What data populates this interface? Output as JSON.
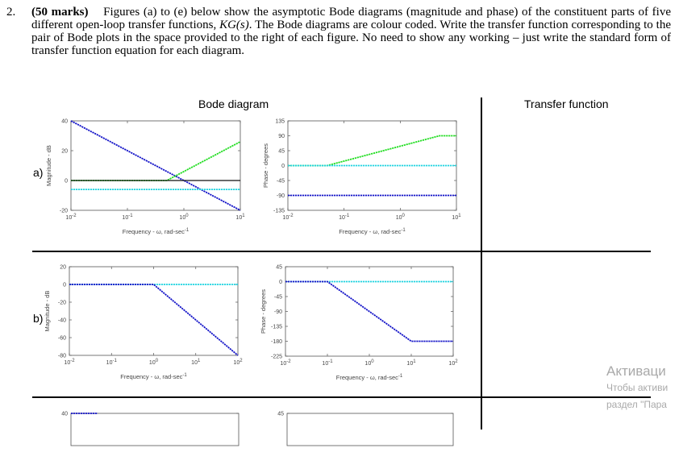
{
  "question": {
    "number": "2.",
    "marks": "(50 marks)",
    "text_before_kg": "Figures (a) to (e) below show the asymptotic Bode diagrams (magnitude and phase) of the constituent parts of five different open-loop transfer functions,",
    "kg": "KG(s)",
    "text_after_kg": ". The Bode diagrams are colour coded. Write the transfer function corresponding to the pair of Bode plots in the space provided to the right of each figure. No need to show any working – just write the standard form of transfer function equation for each diagram."
  },
  "table": {
    "header_left": "Bode diagram",
    "header_right": "Transfer function",
    "row_labels": [
      "a)",
      "b)"
    ]
  },
  "watermark": {
    "line1": "Активаци",
    "line2": "Чтобы активи",
    "line3": "раздел \"Пара"
  },
  "colors": {
    "green": "#22dd22",
    "blue": "#1515c8",
    "cyan": "#22d4e0",
    "black": "#111111"
  },
  "chart_data": [
    {
      "id": "a-magnitude",
      "type": "line",
      "xscale": "log",
      "xlim": [
        0.01,
        10
      ],
      "ylim": [
        -20,
        40
      ],
      "xticks": [
        0.01,
        0.1,
        1,
        10
      ],
      "xtick_labels": [
        "10^-2",
        "10^-1",
        "10^0",
        "10^1"
      ],
      "yticks": [
        -20,
        0,
        20,
        40
      ],
      "ytick_labels": [
        "-20",
        "0",
        "20",
        "40"
      ],
      "xlabel": "Frequency - ω, rad-sec^-1",
      "ylabel": "Magnitude - dB",
      "series": [
        {
          "color": "blue",
          "x": [
            0.01,
            10
          ],
          "y": [
            40,
            -20
          ]
        },
        {
          "color": "green",
          "x": [
            0.01,
            0.5,
            10
          ],
          "y": [
            0,
            0,
            26
          ]
        },
        {
          "color": "black",
          "x": [
            0.01,
            10
          ],
          "y": [
            0,
            0
          ]
        },
        {
          "color": "cyan",
          "x": [
            0.01,
            10
          ],
          "y": [
            -6,
            -6
          ]
        }
      ]
    },
    {
      "id": "a-phase",
      "type": "line",
      "xscale": "log",
      "xlim": [
        0.01,
        10
      ],
      "ylim": [
        -135,
        135
      ],
      "xticks": [
        0.01,
        0.1,
        1,
        10
      ],
      "xtick_labels": [
        "10^-2",
        "10^-1",
        "10^0",
        "10^1"
      ],
      "yticks": [
        -135,
        -90,
        -45,
        0,
        45,
        90,
        135
      ],
      "ytick_labels": [
        "-135",
        "-90",
        "-45",
        "0",
        "45",
        "90",
        "135"
      ],
      "xlabel": "Frequency - ω, rad-sec^-1",
      "ylabel": "Phase - degrees",
      "series": [
        {
          "color": "green",
          "x": [
            0.01,
            0.05,
            5,
            10
          ],
          "y": [
            0,
            0,
            90,
            90
          ]
        },
        {
          "color": "cyan",
          "x": [
            0.01,
            10
          ],
          "y": [
            0,
            0
          ]
        },
        {
          "color": "blue",
          "x": [
            0.01,
            10
          ],
          "y": [
            -90,
            -90
          ]
        }
      ]
    },
    {
      "id": "b-magnitude",
      "type": "line",
      "xscale": "log",
      "xlim": [
        0.01,
        100
      ],
      "ylim": [
        -80,
        20
      ],
      "xticks": [
        0.01,
        0.1,
        1,
        10,
        100
      ],
      "xtick_labels": [
        "10^-2",
        "10^-1",
        "10^0",
        "10^1",
        "10^2"
      ],
      "yticks": [
        -80,
        -60,
        -40,
        -20,
        0,
        20
      ],
      "ytick_labels": [
        "-80",
        "-60",
        "-40",
        "-20",
        "0",
        "20"
      ],
      "xlabel": "Frequency - ω, rad-sec^-1",
      "ylabel": "Magnitude - dB",
      "series": [
        {
          "color": "cyan",
          "x": [
            0.01,
            100
          ],
          "y": [
            0,
            0
          ]
        },
        {
          "color": "blue",
          "x": [
            0.01,
            1,
            100
          ],
          "y": [
            0,
            0,
            -80
          ]
        }
      ]
    },
    {
      "id": "b-phase",
      "type": "line",
      "xscale": "log",
      "xlim": [
        0.01,
        100
      ],
      "ylim": [
        -225,
        45
      ],
      "xticks": [
        0.01,
        0.1,
        1,
        10,
        100
      ],
      "xtick_labels": [
        "10^-2",
        "10^-1",
        "10^0",
        "10^1",
        "10^2"
      ],
      "yticks": [
        -225,
        -180,
        -135,
        -90,
        -45,
        0,
        45
      ],
      "ytick_labels": [
        "-225",
        "-180",
        "-135",
        "-90",
        "-45",
        "0",
        "45"
      ],
      "xlabel": "Frequency - ω, rad-sec^-1",
      "ylabel": "Phase - degrees",
      "series": [
        {
          "color": "cyan",
          "x": [
            0.01,
            100
          ],
          "y": [
            0,
            0
          ]
        },
        {
          "color": "blue",
          "x": [
            0.01,
            0.1,
            10,
            100
          ],
          "y": [
            0,
            0,
            -180,
            -180
          ]
        }
      ]
    },
    {
      "id": "c-magnitude",
      "type": "line",
      "xscale": "log",
      "xlim": [
        0.01,
        10
      ],
      "yticks": [
        40
      ],
      "ytick_labels": [
        "40"
      ],
      "series": [
        {
          "color": "blue",
          "x": [
            0.01,
            0.03
          ],
          "y": [
            40,
            32
          ]
        }
      ]
    },
    {
      "id": "c-phase",
      "type": "line",
      "xscale": "log",
      "xlim": [
        0.01,
        10
      ],
      "yticks": [
        45
      ],
      "ytick_labels": [
        "45"
      ],
      "series": []
    }
  ]
}
